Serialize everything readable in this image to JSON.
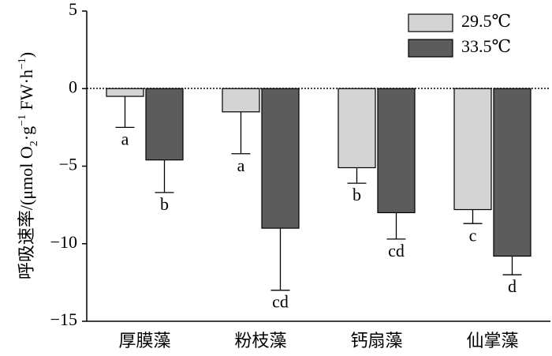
{
  "chart_data": {
    "type": "bar",
    "ylabel": [
      "呼吸速率/(μmol O",
      "2",
      "·g",
      "−1",
      " FW·h",
      "−1",
      ")"
    ],
    "categories": [
      "厚膜藻",
      "粉枝藻",
      "钙扇藻",
      "仙掌藻"
    ],
    "series": [
      {
        "name": "29.5℃",
        "color": "#d4d4d4",
        "values": [
          -0.5,
          -1.5,
          -5.1,
          -7.8
        ],
        "errors": [
          2.0,
          2.7,
          1.0,
          0.9
        ],
        "letters": [
          "a",
          "a",
          "b",
          "c"
        ]
      },
      {
        "name": "33.5℃",
        "color": "#5c5c5c",
        "values": [
          -4.6,
          -9.0,
          -8.0,
          -10.8
        ],
        "errors": [
          2.1,
          4.0,
          1.7,
          1.2
        ],
        "letters": [
          "b",
          "cd",
          "cd",
          "d"
        ]
      }
    ],
    "ylim": [
      -15,
      5
    ],
    "yticks": [
      {
        "value": -15,
        "label": "−15"
      },
      {
        "value": -10,
        "label": "−10"
      },
      {
        "value": -5,
        "label": "−5"
      },
      0,
      5
    ],
    "legend": "upper right"
  }
}
